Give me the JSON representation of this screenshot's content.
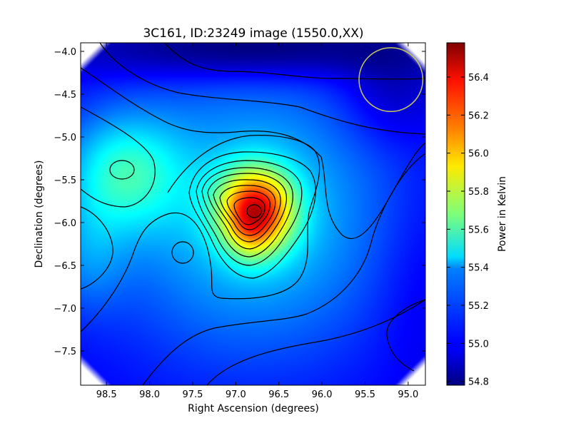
{
  "chart_data": {
    "type": "heatmap",
    "title": "3C161, ID:23249 image (1550.0,XX)",
    "xlabel": "Right Ascension (degrees)",
    "ylabel": "Declination (degrees)",
    "colorbar_label": "Power in Kelvin",
    "xlim": [
      98.8,
      94.8
    ],
    "ylim": [
      -7.9,
      -3.9
    ],
    "x_ticks": [
      98.5,
      98.0,
      97.5,
      97.0,
      96.5,
      96.0,
      95.5,
      95.0
    ],
    "x_tick_labels": [
      "98.5",
      "98.0",
      "97.5",
      "97.0",
      "96.5",
      "96.0",
      "95.5",
      "95.0"
    ],
    "y_ticks": [
      -4.0,
      -4.5,
      -5.0,
      -5.5,
      -6.0,
      -6.5,
      -7.0,
      -7.5
    ],
    "y_tick_labels": [
      "−4.0",
      "−4.5",
      "−5.0",
      "−5.5",
      "−6.0",
      "−6.5",
      "−7.0",
      "−7.5"
    ],
    "colorbar_range": [
      54.78,
      56.58
    ],
    "colorbar_ticks": [
      54.8,
      55.0,
      55.2,
      55.4,
      55.6,
      55.8,
      56.0,
      56.2,
      56.4
    ],
    "colorbar_tick_labels": [
      "54.8",
      "55.0",
      "55.2",
      "55.4",
      "55.6",
      "55.8",
      "56.0",
      "56.2",
      "56.4"
    ],
    "colormap": "jet",
    "contours": "black",
    "peak": {
      "ra": 96.75,
      "dec": -5.85,
      "value": 56.58
    },
    "beam_circle": {
      "ra": 95.2,
      "dec": -4.33,
      "radius_deg": 0.37,
      "color": "#c8c85a"
    }
  }
}
